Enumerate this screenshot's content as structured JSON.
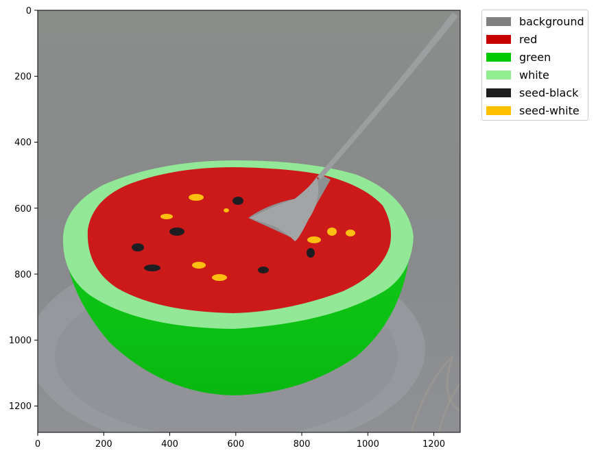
{
  "chart_data": {
    "type": "segmentation-overlay",
    "x_ticks": [
      "0",
      "200",
      "400",
      "600",
      "800",
      "1000",
      "1200"
    ],
    "y_ticks": [
      "0",
      "200",
      "400",
      "600",
      "800",
      "1000",
      "1200"
    ],
    "xlim": [
      0,
      1280
    ],
    "ylim": [
      1280,
      0
    ],
    "legend_position": "outside-top-right",
    "legend": [
      {
        "label": "background",
        "color": "#808080"
      },
      {
        "label": "red",
        "color": "#c80000"
      },
      {
        "label": "green",
        "color": "#00c800"
      },
      {
        "label": "white",
        "color": "#90ee90"
      },
      {
        "label": "seed-black",
        "color": "#1e1e1e"
      },
      {
        "label": "seed-white",
        "color": "#ffc000"
      }
    ]
  }
}
